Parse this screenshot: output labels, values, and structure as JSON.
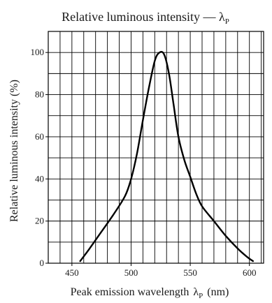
{
  "chart_data": {
    "type": "line",
    "title": {
      "main": "Relative luminous intensity — λ",
      "sub": "P"
    },
    "xlabel": {
      "main": "Peak emission wavelength",
      "symbol": "λ",
      "sub": "P",
      "unit": "(nm)"
    },
    "ylabel": "Relative luminous intensity (%)",
    "xlim": [
      430,
      612
    ],
    "ylim": [
      0,
      110
    ],
    "x_ticks": [
      450,
      500,
      550,
      600
    ],
    "y_ticks": [
      0,
      20,
      40,
      60,
      80,
      100
    ],
    "grid": true,
    "grid_x_step": 10,
    "grid_y_step": 10,
    "series": [
      {
        "x": [
          457,
          465,
          475,
          485,
          495,
          500,
          505,
          510,
          515,
          520,
          524,
          528,
          532,
          536,
          540,
          545,
          550,
          555,
          560,
          570,
          580,
          590,
          598,
          603
        ],
        "y": [
          1,
          7,
          15,
          23,
          32,
          40,
          52,
          68,
          83,
          96,
          100,
          99,
          90,
          75,
          60,
          49,
          41,
          33,
          27,
          20,
          13,
          7,
          3,
          1
        ]
      }
    ]
  }
}
